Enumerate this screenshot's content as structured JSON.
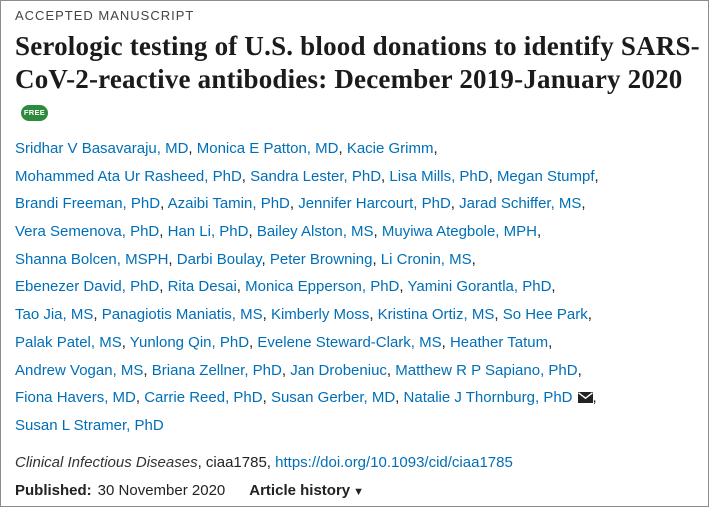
{
  "header": {
    "label": "ACCEPTED MANUSCRIPT",
    "title_main": "Serologic testing of U.S. blood donations to identify SARS-CoV-2-reactive antibodies: December 2019-January 2020",
    "free_badge": "FREE"
  },
  "authors": {
    "line1": [
      "Sridhar V Basavaraju, MD",
      "Monica E Patton, MD",
      "Kacie Grimm"
    ],
    "line2": [
      "Mohammed Ata Ur Rasheed, PhD",
      "Sandra Lester, PhD",
      "Lisa Mills, PhD",
      "Megan Stumpf"
    ],
    "line3": [
      "Brandi Freeman, PhD",
      "Azaibi Tamin, PhD",
      "Jennifer Harcourt, PhD",
      "Jarad Schiffer, MS"
    ],
    "line4": [
      "Vera Semenova, PhD",
      "Han Li, PhD",
      "Bailey Alston, MS",
      "Muyiwa Ategbole, MPH"
    ],
    "line5": [
      "Shanna Bolcen, MSPH",
      "Darbi Boulay",
      "Peter Browning",
      "Li Cronin, MS"
    ],
    "line6": [
      "Ebenezer David, PhD",
      "Rita Desai",
      "Monica Epperson, PhD",
      "Yamini Gorantla, PhD"
    ],
    "line7": [
      "Tao Jia, MS",
      "Panagiotis Maniatis, MS",
      "Kimberly Moss",
      "Kristina Ortiz, MS",
      "So Hee Park"
    ],
    "line8": [
      "Palak Patel, MS",
      "Yunlong Qin, PhD",
      "Evelene Steward-Clark, MS",
      "Heather Tatum"
    ],
    "line9": [
      "Andrew Vogan, MS",
      "Briana Zellner, PhD",
      "Jan Drobeniuc",
      "Matthew R P Sapiano, PhD"
    ],
    "line10": [
      "Fiona Havers, MD",
      "Carrie Reed, PhD",
      "Susan Gerber, MD",
      "Natalie J Thornburg, PhD"
    ],
    "line11": [
      "Susan L Stramer, PhD"
    ]
  },
  "citation": {
    "journal": "Clinical Infectious Diseases",
    "article_id": ", ciaa1785, ",
    "doi": "https://doi.org/10.1093/cid/ciaa1785"
  },
  "published": {
    "label": "Published:",
    "date": "30 November 2020",
    "history_label": "Article history"
  },
  "icons": {
    "mail": "envelope-icon",
    "caret": "caret-down-icon"
  },
  "colors": {
    "link": "#006fb7",
    "badge": "#2e8b3d"
  }
}
